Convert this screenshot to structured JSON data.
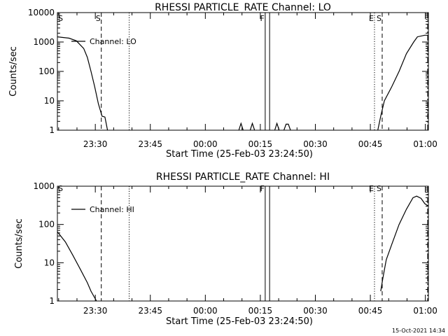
{
  "chart_data": [
    {
      "type": "line",
      "title": "RHESSI PARTICLE_RATE Channel: LO",
      "xlabel": "Start Time (25-Feb-03 23:24:50)",
      "ylabel": "Counts/sec",
      "y_scale": "log",
      "ylim": [
        1,
        10000
      ],
      "xlim_min": [
        -5.17,
        96.0
      ],
      "x_ticks_min": [
        5.17,
        20.17,
        35.17,
        50.17,
        65.17,
        80.17,
        95.17
      ],
      "x_tick_labels": [
        "23:30",
        "23:45",
        "00:00",
        "00:15",
        "00:30",
        "00:45",
        "01:00"
      ],
      "y_ticks": [
        1,
        10,
        100,
        1000,
        10000
      ],
      "y_tick_labels": [
        "1",
        "10",
        "100",
        "1000",
        "10000"
      ],
      "legend": {
        "position": "top-left",
        "entries": [
          "Channel: LO"
        ]
      },
      "grid": false,
      "series": [
        {
          "name": "Channel: LO",
          "segments": [
            [
              [
                -5.2,
                1500
              ],
              [
                -2,
                1350
              ],
              [
                0,
                1100
              ],
              [
                2,
                600
              ],
              [
                3,
                300
              ],
              [
                4,
                100
              ],
              [
                5,
                30
              ],
              [
                6,
                8
              ],
              [
                7,
                3
              ],
              [
                7.8,
                2.8
              ],
              [
                8.5,
                1
              ]
            ],
            [
              [
                44.3,
                1
              ],
              [
                44.9,
                1.7
              ],
              [
                45.5,
                1
              ]
            ],
            [
              [
                47.4,
                1
              ],
              [
                48.0,
                1.7
              ],
              [
                48.6,
                1
              ]
            ],
            [
              [
                54.1,
                1
              ],
              [
                54.7,
                1.7
              ],
              [
                55.3,
                1
              ]
            ],
            [
              [
                56.6,
                1
              ],
              [
                57.2,
                1.6
              ],
              [
                57.8,
                1.6
              ],
              [
                58.4,
                1
              ]
            ],
            [
              [
                82.2,
                1
              ],
              [
                83.0,
                3
              ],
              [
                84.0,
                10
              ],
              [
                86,
                30
              ],
              [
                88,
                100
              ],
              [
                90,
                400
              ],
              [
                92,
                1000
              ],
              [
                93,
                1500
              ],
              [
                95,
                1700
              ],
              [
                96.0,
                1700
              ]
            ]
          ]
        }
      ],
      "markers": [
        {
          "x": 6.8,
          "style": "dashed",
          "label": "S"
        },
        {
          "x": 14.4,
          "style": "dotted",
          "label": ""
        },
        {
          "x": 51.5,
          "style": "solid",
          "label": "F"
        },
        {
          "x": 52.7,
          "style": "solid",
          "label": ""
        },
        {
          "x": 81.3,
          "style": "dotted",
          "label": "E"
        },
        {
          "x": 83.4,
          "style": "dashed",
          "label": "S"
        },
        {
          "x": 95.8,
          "style": "dashdot",
          "label": ""
        }
      ],
      "corner_label": "S"
    },
    {
      "type": "line",
      "title": "RHESSI PARTICLE_RATE Channel: HI",
      "xlabel": "Start Time (25-Feb-03 23:24:50)",
      "ylabel": "Counts/sec",
      "y_scale": "log",
      "ylim": [
        1,
        1000
      ],
      "xlim_min": [
        -5.17,
        96.0
      ],
      "x_ticks_min": [
        5.17,
        20.17,
        35.17,
        50.17,
        65.17,
        80.17,
        95.17
      ],
      "x_tick_labels": [
        "23:30",
        "23:45",
        "00:00",
        "00:15",
        "00:30",
        "00:45",
        "01:00"
      ],
      "y_ticks": [
        1,
        10,
        100,
        1000
      ],
      "y_tick_labels": [
        "1",
        "10",
        "100",
        "1000"
      ],
      "legend": {
        "position": "top-left",
        "entries": [
          "Channel: HI"
        ]
      },
      "grid": false,
      "series": [
        {
          "name": "Channel: HI",
          "segments": [
            [
              [
                -5.2,
                65
              ],
              [
                -3,
                35
              ],
              [
                -1,
                16
              ],
              [
                1,
                7
              ],
              [
                3,
                3
              ],
              [
                4,
                1.8
              ],
              [
                5.5,
                1
              ]
            ],
            [
              [
                83.0,
                1.8
              ],
              [
                83.6,
                4
              ],
              [
                84.5,
                12
              ],
              [
                86,
                30
              ],
              [
                88,
                100
              ],
              [
                90,
                250
              ],
              [
                91.8,
                500
              ],
              [
                92.8,
                550
              ],
              [
                94,
                480
              ],
              [
                95,
                350
              ],
              [
                96.0,
                300
              ]
            ]
          ]
        }
      ],
      "markers": [
        {
          "x": 6.8,
          "style": "dashed",
          "label": ""
        },
        {
          "x": 14.4,
          "style": "dotted",
          "label": ""
        },
        {
          "x": 51.5,
          "style": "solid",
          "label": "F"
        },
        {
          "x": 52.7,
          "style": "solid",
          "label": ""
        },
        {
          "x": 81.3,
          "style": "dotted",
          "label": "E"
        },
        {
          "x": 83.4,
          "style": "dashed",
          "label": "S"
        },
        {
          "x": 95.8,
          "style": "dashdot",
          "label": ""
        }
      ],
      "corner_label": "S"
    }
  ],
  "footer": {
    "timestamp": "15-Oct-2021 14:34"
  }
}
